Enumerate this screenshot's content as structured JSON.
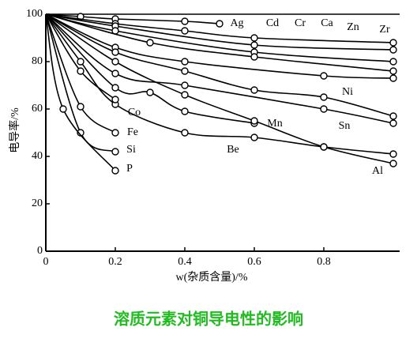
{
  "chart_data": {
    "type": "line",
    "xlabel": "w(杂质含量)/%",
    "ylabel": "电导率/%",
    "caption": "溶质元素对铜导电性的影响",
    "xlim": [
      0,
      1.0
    ],
    "ylim": [
      0,
      100
    ],
    "xticks": [
      0,
      0.2,
      0.4,
      0.6,
      0.8
    ],
    "yticks": [
      0,
      20,
      40,
      60,
      80,
      100
    ],
    "series": [
      {
        "name": "Ag",
        "color": "#000000",
        "x": [
          0,
          0.1,
          0.2,
          0.4,
          0.5
        ],
        "values": [
          100,
          99,
          98,
          97,
          96
        ]
      },
      {
        "name": "Cd",
        "color": "#000000",
        "x": [
          0,
          0.2,
          0.4,
          0.6,
          1.0
        ],
        "values": [
          100,
          96,
          93,
          90,
          88
        ]
      },
      {
        "name": "Cr",
        "color": "#000000",
        "x": [
          0,
          0.2,
          0.6,
          1.0
        ],
        "values": [
          100,
          95,
          87,
          85
        ]
      },
      {
        "name": "Ca",
        "color": "#000000",
        "x": [
          0,
          0.2,
          0.6,
          1.0
        ],
        "values": [
          100,
          93,
          84,
          80
        ]
      },
      {
        "name": "Zn",
        "color": "#000000",
        "x": [
          0,
          0.3,
          0.6,
          1.0
        ],
        "values": [
          100,
          88,
          82,
          76
        ]
      },
      {
        "name": "Zr",
        "color": "#000000",
        "x": [
          0,
          0.2,
          0.4,
          0.8,
          1.0
        ],
        "values": [
          100,
          86,
          80,
          74,
          73
        ]
      },
      {
        "name": "Ni",
        "color": "#000000",
        "x": [
          0,
          0.2,
          0.4,
          0.6,
          0.8,
          1.0
        ],
        "values": [
          100,
          84,
          76,
          68,
          65,
          57
        ]
      },
      {
        "name": "Sn",
        "color": "#000000",
        "x": [
          0,
          0.2,
          0.4,
          0.8,
          1.0
        ],
        "values": [
          100,
          75,
          70,
          60,
          54
        ]
      },
      {
        "name": "Mn",
        "color": "#000000",
        "x": [
          0,
          0.2,
          0.3,
          0.4,
          0.6
        ],
        "values": [
          100,
          69,
          67,
          59,
          54
        ]
      },
      {
        "name": "Be",
        "color": "#000000",
        "x": [
          0,
          0.1,
          0.2,
          0.4,
          0.6,
          0.8,
          1.0
        ],
        "values": [
          100,
          80,
          62,
          50,
          48,
          44,
          41
        ]
      },
      {
        "name": "Al",
        "color": "#000000",
        "x": [
          0,
          0.2,
          0.4,
          0.6,
          0.8,
          1.0
        ],
        "values": [
          100,
          80,
          66,
          55,
          44,
          37
        ]
      },
      {
        "name": "Co",
        "color": "#000000",
        "x": [
          0,
          0.1,
          0.2
        ],
        "values": [
          100,
          76,
          64
        ]
      },
      {
        "name": "Fe",
        "color": "#000000",
        "x": [
          0,
          0.1,
          0.2
        ],
        "values": [
          100,
          61,
          50
        ]
      },
      {
        "name": "Si",
        "color": "#000000",
        "x": [
          0,
          0.1,
          0.2
        ],
        "values": [
          100,
          50,
          42
        ]
      },
      {
        "name": "P",
        "color": "#000000",
        "x": [
          0,
          0.05,
          0.2
        ],
        "values": [
          100,
          60,
          34
        ]
      }
    ]
  }
}
